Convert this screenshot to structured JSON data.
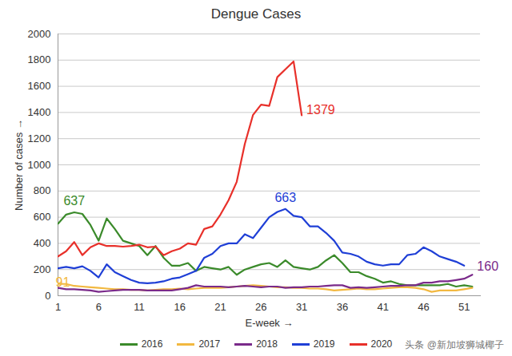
{
  "chart_data": {
    "type": "line",
    "title": "Dengue Cases",
    "x_label": "E-week",
    "y_label": "Number of cases",
    "x": [
      1,
      2,
      3,
      4,
      5,
      6,
      7,
      8,
      9,
      10,
      11,
      12,
      13,
      14,
      15,
      16,
      17,
      18,
      19,
      20,
      21,
      22,
      23,
      24,
      25,
      26,
      27,
      28,
      29,
      30,
      31,
      32,
      33,
      34,
      35,
      36,
      37,
      38,
      39,
      40,
      41,
      42,
      43,
      44,
      45,
      46,
      47,
      48,
      49,
      50,
      51,
      52
    ],
    "xlim": [
      1,
      53
    ],
    "xticks": [
      1,
      6,
      11,
      16,
      21,
      26,
      31,
      36,
      41,
      46,
      51
    ],
    "ylim": [
      0,
      2000
    ],
    "yticks": [
      0,
      200,
      400,
      600,
      800,
      1000,
      1200,
      1400,
      1600,
      1800,
      2000
    ],
    "grid": true,
    "legend": "bottom",
    "series": [
      {
        "name": "2016",
        "color": "#3a8a2a",
        "values": [
          550,
          620,
          637,
          625,
          540,
          420,
          590,
          510,
          420,
          400,
          380,
          310,
          380,
          290,
          230,
          230,
          250,
          190,
          220,
          210,
          200,
          220,
          160,
          200,
          220,
          240,
          250,
          220,
          270,
          220,
          210,
          200,
          220,
          270,
          310,
          250,
          180,
          180,
          150,
          130,
          100,
          110,
          90,
          80,
          80,
          80,
          80,
          80,
          90,
          70,
          80,
          70
        ]
      },
      {
        "name": "2017",
        "color": "#f2b840",
        "values": [
          91,
          90,
          75,
          70,
          65,
          60,
          55,
          50,
          50,
          45,
          45,
          40,
          45,
          50,
          50,
          55,
          50,
          55,
          60,
          60,
          60,
          65,
          70,
          75,
          80,
          75,
          70,
          65,
          65,
          60,
          60,
          55,
          55,
          50,
          40,
          45,
          50,
          55,
          50,
          50,
          55,
          60,
          65,
          65,
          60,
          50,
          30,
          40,
          40,
          40,
          50,
          60
        ]
      },
      {
        "name": "2018",
        "color": "#7a2a8a",
        "values": [
          60,
          50,
          50,
          45,
          40,
          30,
          35,
          40,
          45,
          45,
          45,
          40,
          40,
          40,
          40,
          50,
          60,
          80,
          70,
          70,
          70,
          65,
          70,
          75,
          70,
          65,
          70,
          70,
          60,
          65,
          65,
          70,
          70,
          75,
          80,
          80,
          60,
          65,
          60,
          65,
          70,
          75,
          75,
          80,
          80,
          100,
          100,
          110,
          110,
          120,
          130,
          160
        ]
      },
      {
        "name": "2019",
        "color": "#1f3fd6",
        "values": [
          210,
          220,
          210,
          225,
          190,
          140,
          240,
          180,
          150,
          120,
          100,
          95,
          100,
          110,
          130,
          140,
          165,
          190,
          290,
          320,
          380,
          400,
          400,
          470,
          440,
          520,
          600,
          640,
          663,
          610,
          600,
          530,
          530,
          480,
          420,
          330,
          320,
          300,
          260,
          240,
          230,
          240,
          240,
          310,
          320,
          370,
          340,
          300,
          280,
          260,
          230,
          null
        ]
      },
      {
        "name": "2020",
        "color": "#e8302a",
        "values": [
          300,
          340,
          410,
          310,
          370,
          400,
          380,
          380,
          375,
          380,
          390,
          370,
          375,
          310,
          340,
          360,
          400,
          390,
          510,
          530,
          620,
          730,
          870,
          1160,
          1380,
          1460,
          1450,
          1670,
          1730,
          1790,
          1379,
          null,
          null,
          null,
          null,
          null,
          null,
          null,
          null,
          null,
          null,
          null,
          null,
          null,
          null,
          null,
          null,
          null,
          null,
          null,
          null,
          null
        ]
      }
    ],
    "annotations": [
      {
        "text": "637",
        "x": 3,
        "y": 637,
        "color": "#3a8a2a"
      },
      {
        "text": "91",
        "x": 1,
        "y": 91,
        "color": "#f2b840"
      },
      {
        "text": "663",
        "x": 29,
        "y": 663,
        "color": "#1f3fd6"
      },
      {
        "text": "1379",
        "x": 31,
        "y": 1379,
        "color": "#e8302a"
      },
      {
        "text": "160",
        "x": 52,
        "y": 160,
        "color": "#7a2a8a"
      }
    ],
    "watermark": "头条 @新加坡狮城椰子"
  }
}
